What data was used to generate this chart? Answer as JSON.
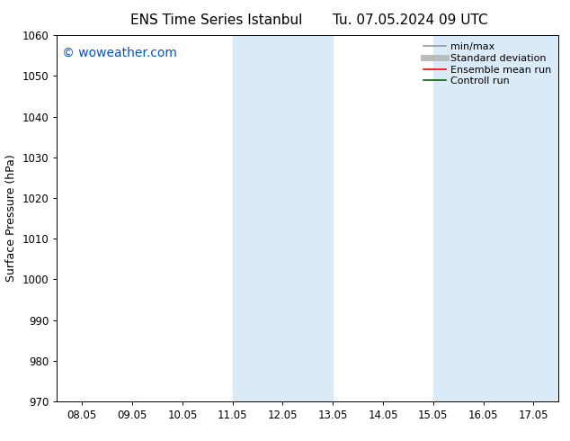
{
  "title_left": "ENS Time Series Istanbul",
  "title_right": "Tu. 07.05.2024 09 UTC",
  "ylabel": "Surface Pressure (hPa)",
  "ylim": [
    970,
    1060
  ],
  "yticks": [
    970,
    980,
    990,
    1000,
    1010,
    1020,
    1030,
    1040,
    1050,
    1060
  ],
  "xtick_labels": [
    "08.05",
    "09.05",
    "10.05",
    "11.05",
    "12.05",
    "13.05",
    "14.05",
    "15.05",
    "16.05",
    "17.05"
  ],
  "xtick_positions": [
    0,
    1,
    2,
    3,
    4,
    5,
    6,
    7,
    8,
    9
  ],
  "xlim": [
    -0.5,
    9.5
  ],
  "shaded_regions": [
    {
      "xmin": 3.0,
      "xmax": 5.0
    },
    {
      "xmin": 7.0,
      "xmax": 9.5
    }
  ],
  "shade_color": "#daeaf7",
  "watermark_text": "© woweather.com",
  "watermark_color": "#0055cc",
  "background_color": "#ffffff",
  "plot_bg_color": "#ffffff",
  "legend_items": [
    {
      "label": "min/max",
      "color": "#999999",
      "lw": 1.2
    },
    {
      "label": "Standard deviation",
      "color": "#bbbbbb",
      "lw": 5
    },
    {
      "label": "Ensemble mean run",
      "color": "#ff0000",
      "lw": 1.2
    },
    {
      "label": "Controll run",
      "color": "#006600",
      "lw": 1.2
    }
  ],
  "title_fontsize": 11,
  "axis_fontsize": 9,
  "tick_fontsize": 8.5,
  "watermark_fontsize": 10,
  "legend_fontsize": 8
}
